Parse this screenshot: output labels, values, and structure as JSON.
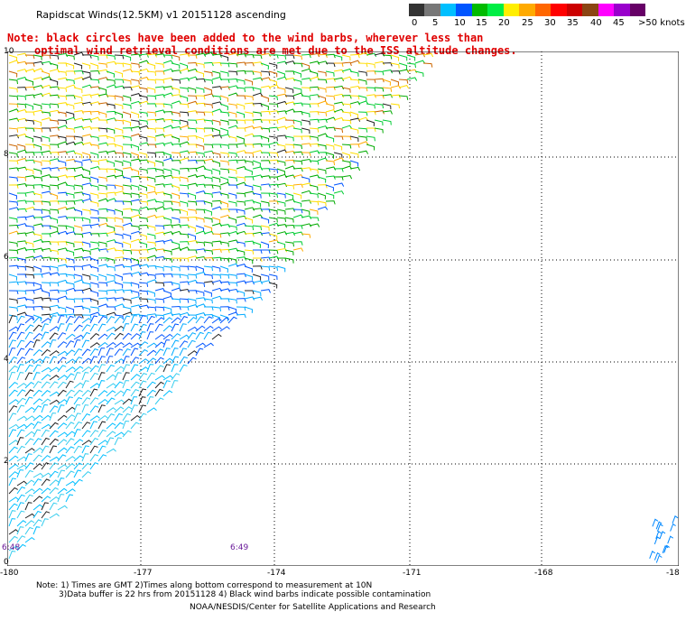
{
  "title": "Rapidscat Winds(12.5KM) v1 20151128 ascending",
  "legend": {
    "colors": [
      "#333333",
      "#777777",
      "#00bfff",
      "#0055ff",
      "#00bb00",
      "#00ee44",
      "#ffee00",
      "#ffaa00",
      "#ff6600",
      "#ff0000",
      "#cc0000",
      "#8b4513",
      "#ff00ff",
      "#9900cc",
      "#660066"
    ],
    "labels": [
      "0",
      "5",
      "10",
      "15",
      "20",
      "25",
      "30",
      "35",
      "40",
      "45",
      ">50 knots"
    ]
  },
  "note": {
    "line1": "Note: black circles have been added to the wind barbs, wherever less than",
    "line2": "optimal wind retrieval conditions are met due to the ISS altitude changes."
  },
  "axes": {
    "x_ticks": [
      "-180",
      "-177",
      "-174",
      "-171",
      "-168",
      "-18"
    ],
    "y_ticks": [
      "10",
      "8",
      "6",
      "4",
      "2",
      "0"
    ]
  },
  "times": [
    "6:48",
    "6:49"
  ],
  "footer": {
    "line1": "Note: 1) Times are GMT 2)Times along bottom correspond to measurement at 10N",
    "line2": "3)Data buffer is 22 hrs from 20151128 4) Black wind barbs indicate possible contamination",
    "line3": "NOAA/NESDIS/Center for Satellite Applications and Research"
  }
}
